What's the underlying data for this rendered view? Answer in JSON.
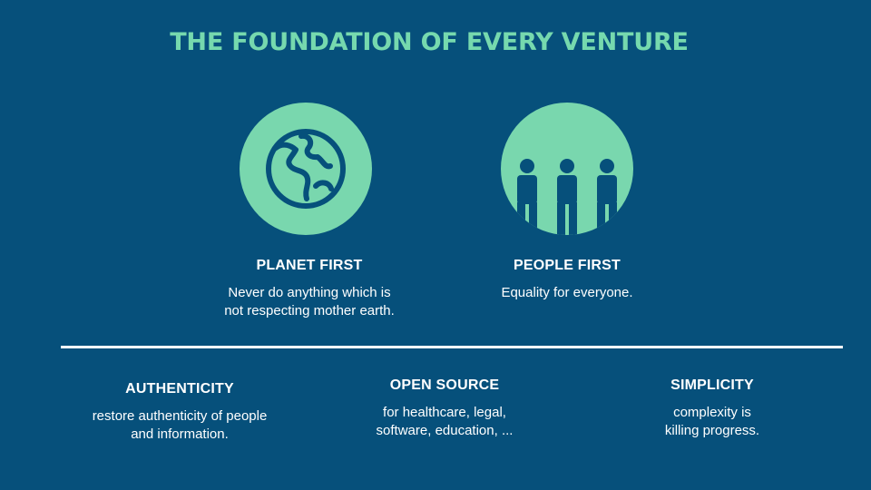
{
  "slide": {
    "title": "THE FOUNDATION OF EVERY VENTURE",
    "colors": {
      "background": "#06507b",
      "accent": "#79d7ae",
      "text": "#ffffff"
    }
  },
  "top_pillars": [
    {
      "icon": "globe-icon",
      "heading": "PLANET FIRST",
      "description": "Never do anything which is\nnot respecting mother earth."
    },
    {
      "icon": "people-icon",
      "heading": "PEOPLE FIRST",
      "description": "Equality for everyone."
    }
  ],
  "bottom_pillars": [
    {
      "heading": "AUTHENTICITY",
      "description": "restore authenticity of people\nand information."
    },
    {
      "heading": "OPEN SOURCE",
      "description": "for healthcare, legal,\nsoftware, education, ..."
    },
    {
      "heading": "SIMPLICITY",
      "description": "complexity is\nkilling progress."
    }
  ]
}
